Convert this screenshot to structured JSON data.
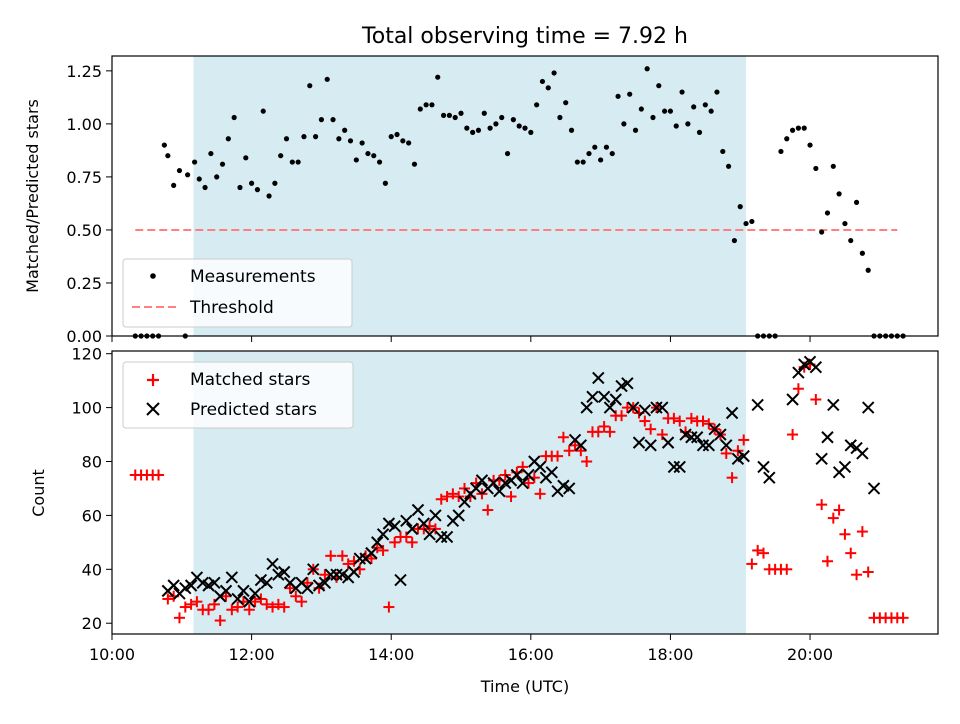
{
  "figure_title": "Total observing time = 7.92 h",
  "colors": {
    "span": "#add8e6",
    "measurements": "#000000",
    "threshold": "#ff8080",
    "matched": "#ff0000",
    "predicted": "#000000"
  },
  "chart_data": [
    {
      "type": "scatter",
      "title": "Total observing time = 7.92 h",
      "xlabel": "",
      "ylabel": "Matched/Predicted stars",
      "xlim": [
        "10:00",
        "21:50"
      ],
      "ylim": [
        0,
        1.32
      ],
      "yticks": [
        "0.00",
        "0.25",
        "0.50",
        "0.75",
        "1.00",
        "1.25"
      ],
      "shaded_span": [
        "11:10",
        "19:05"
      ],
      "threshold": {
        "name": "Threshold",
        "y": 0.5,
        "x_range": [
          "10:20",
          "21:15"
        ]
      },
      "legend": {
        "position": "lower-left",
        "entries": [
          "Measurements",
          "Threshold"
        ]
      },
      "series": [
        {
          "name": "Measurements",
          "x": [
            "10:20",
            "10:25",
            "10:30",
            "10:35",
            "10:40",
            "10:45",
            "10:48",
            "10:53",
            "10:58",
            "11:03",
            "11:05",
            "11:11",
            "11:15",
            "11:20",
            "11:25",
            "11:30",
            "11:35",
            "11:40",
            "11:45",
            "11:50",
            "11:55",
            "12:00",
            "12:05",
            "12:10",
            "12:15",
            "12:20",
            "12:25",
            "12:30",
            "12:35",
            "12:40",
            "12:45",
            "12:50",
            "12:55",
            "13:00",
            "13:05",
            "13:10",
            "13:15",
            "13:20",
            "13:25",
            "13:30",
            "13:35",
            "13:40",
            "13:45",
            "13:50",
            "13:55",
            "14:00",
            "14:05",
            "14:10",
            "14:15",
            "14:20",
            "14:25",
            "14:30",
            "14:35",
            "14:40",
            "14:45",
            "14:50",
            "14:55",
            "15:00",
            "15:05",
            "15:10",
            "15:15",
            "15:20",
            "15:25",
            "15:30",
            "15:35",
            "15:40",
            "15:45",
            "15:50",
            "15:55",
            "16:00",
            "16:05",
            "16:10",
            "16:15",
            "16:20",
            "16:25",
            "16:30",
            "16:35",
            "16:40",
            "16:45",
            "16:50",
            "16:55",
            "17:00",
            "17:05",
            "17:10",
            "17:15",
            "17:20",
            "17:25",
            "17:30",
            "17:35",
            "17:40",
            "17:45",
            "17:50",
            "17:55",
            "18:00",
            "18:05",
            "18:10",
            "18:15",
            "18:20",
            "18:25",
            "18:30",
            "18:35",
            "18:40",
            "18:45",
            "18:50",
            "18:55",
            "19:00",
            "19:05",
            "19:10",
            "19:15",
            "19:20",
            "19:25",
            "19:30",
            "19:35",
            "19:40",
            "19:45",
            "19:50",
            "19:55",
            "20:00",
            "20:05",
            "20:10",
            "20:15",
            "20:20",
            "20:25",
            "20:30",
            "20:35",
            "20:40",
            "20:45",
            "20:50",
            "20:55",
            "21:00",
            "21:05",
            "21:10",
            "21:15",
            "21:20"
          ],
          "y": [
            0,
            0,
            0,
            0,
            0,
            0.9,
            0.85,
            0.71,
            0.78,
            0,
            0.76,
            0.82,
            0.74,
            0.7,
            0.86,
            0.75,
            0.81,
            0.93,
            1.03,
            0.7,
            0.84,
            0.72,
            0.69,
            1.06,
            0.66,
            0.72,
            0.85,
            0.93,
            0.82,
            0.82,
            0.94,
            1.18,
            0.94,
            1.02,
            1.21,
            1.02,
            0.93,
            0.97,
            0.92,
            0.83,
            0.91,
            0.86,
            0.85,
            0.82,
            0.72,
            0.94,
            0.95,
            0.92,
            0.91,
            0.81,
            1.07,
            1.09,
            1.09,
            1.22,
            1.04,
            1.04,
            1.03,
            1.05,
            0.98,
            0.96,
            0.97,
            1.05,
            0.98,
            1.0,
            1.03,
            0.86,
            1.02,
            0.99,
            0.98,
            0.96,
            1.09,
            1.2,
            1.17,
            1.24,
            1.03,
            1.1,
            0.97,
            0.82,
            0.82,
            0.86,
            0.89,
            0.83,
            0.89,
            0.86,
            1.13,
            1.0,
            1.14,
            0.97,
            1.07,
            1.26,
            1.03,
            1.18,
            1.06,
            1.06,
            0.99,
            1.15,
            1.0,
            1.08,
            0.96,
            1.09,
            1.06,
            1.15,
            0.87,
            0.8,
            0.45,
            0.61,
            0.53,
            0.54,
            0,
            0,
            0,
            0,
            0.87,
            0.93,
            0.97,
            0.98,
            0.98,
            0.9,
            0.79,
            0.49,
            0.58,
            0.8,
            0.67,
            0.53,
            0.45,
            0.63,
            0.39,
            0.31,
            0,
            0,
            0,
            0,
            0,
            0
          ]
        }
      ]
    },
    {
      "type": "scatter",
      "xlabel": "Time (UTC)",
      "ylabel": "Count",
      "xlim": [
        "10:00",
        "21:50"
      ],
      "ylim": [
        16,
        121
      ],
      "xticks": [
        "10:00",
        "12:00",
        "14:00",
        "16:00",
        "18:00",
        "20:00"
      ],
      "yticks": [
        "20",
        "40",
        "60",
        "80",
        "100",
        "120"
      ],
      "shaded_span": [
        "11:10",
        "19:05"
      ],
      "legend": {
        "position": "upper-left",
        "entries": [
          "Matched stars",
          "Predicted stars"
        ]
      },
      "series": [
        {
          "name": "Matched stars",
          "x": [
            "10:20",
            "10:25",
            "10:30",
            "10:35",
            "10:40",
            "10:48",
            "10:53",
            "10:58",
            "11:03",
            "11:08",
            "11:13",
            "11:18",
            "11:23",
            "11:28",
            "11:33",
            "11:38",
            "11:43",
            "11:48",
            "11:53",
            "11:58",
            "12:03",
            "12:08",
            "12:13",
            "12:18",
            "12:23",
            "12:28",
            "12:33",
            "12:38",
            "12:43",
            "12:48",
            "12:53",
            "12:58",
            "13:03",
            "13:08",
            "13:13",
            "13:18",
            "13:23",
            "13:28",
            "13:33",
            "13:38",
            "13:43",
            "13:48",
            "13:53",
            "13:58",
            "14:03",
            "14:08",
            "14:13",
            "14:18",
            "14:23",
            "14:28",
            "14:33",
            "14:38",
            "14:43",
            "14:48",
            "14:53",
            "14:58",
            "15:03",
            "15:08",
            "15:13",
            "15:18",
            "15:23",
            "15:28",
            "15:33",
            "15:38",
            "15:43",
            "15:48",
            "15:53",
            "15:58",
            "16:03",
            "16:08",
            "16:13",
            "16:18",
            "16:23",
            "16:28",
            "16:33",
            "16:38",
            "16:43",
            "16:48",
            "16:53",
            "16:58",
            "17:03",
            "17:08",
            "17:13",
            "17:18",
            "17:23",
            "17:28",
            "17:33",
            "17:38",
            "17:43",
            "17:48",
            "17:53",
            "17:58",
            "18:03",
            "18:08",
            "18:13",
            "18:18",
            "18:23",
            "18:28",
            "18:33",
            "18:38",
            "18:43",
            "18:48",
            "18:53",
            "18:58",
            "19:03",
            "19:10",
            "19:15",
            "19:20",
            "19:25",
            "19:30",
            "19:35",
            "19:40",
            "19:45",
            "19:50",
            "19:55",
            "20:00",
            "20:05",
            "20:10",
            "20:15",
            "20:20",
            "20:25",
            "20:30",
            "20:35",
            "20:40",
            "20:45",
            "20:50",
            "20:55",
            "21:00",
            "21:05",
            "21:10",
            "21:15",
            "21:20"
          ],
          "y": [
            75,
            75,
            75,
            75,
            75,
            29,
            30,
            22,
            26,
            27,
            28,
            25,
            25,
            27,
            21,
            30,
            25,
            26,
            28,
            25,
            28,
            29,
            27,
            26,
            27,
            26,
            33,
            30,
            28,
            35,
            40,
            33,
            38,
            45,
            37,
            45,
            42,
            43,
            40,
            45,
            44,
            48,
            47,
            26,
            50,
            52,
            52,
            50,
            55,
            55,
            56,
            55,
            66,
            67,
            68,
            67,
            70,
            67,
            72,
            68,
            62,
            73,
            73,
            75,
            67,
            76,
            78,
            72,
            74,
            68,
            82,
            82,
            82,
            89,
            84,
            86,
            84,
            80,
            91,
            91,
            93,
            91,
            97,
            97,
            100,
            100,
            98,
            95,
            92,
            100,
            90,
            96,
            96,
            95,
            91,
            96,
            95,
            95,
            94,
            92,
            90,
            83,
            74,
            84,
            88,
            42,
            47,
            46,
            40,
            40,
            40,
            40,
            90,
            107,
            115,
            116,
            103,
            64,
            43,
            59,
            62,
            53,
            46,
            38,
            54,
            39,
            22,
            22,
            22,
            22,
            22,
            22
          ]
        },
        {
          "name": "Predicted stars",
          "x": [
            "10:48",
            "10:53",
            "10:58",
            "11:03",
            "11:08",
            "11:13",
            "11:18",
            "11:23",
            "11:28",
            "11:33",
            "11:38",
            "11:43",
            "11:48",
            "11:53",
            "11:58",
            "12:03",
            "12:08",
            "12:13",
            "12:18",
            "12:23",
            "12:28",
            "12:33",
            "12:38",
            "12:43",
            "12:48",
            "12:53",
            "12:58",
            "13:03",
            "13:08",
            "13:13",
            "13:18",
            "13:23",
            "13:28",
            "13:33",
            "13:38",
            "13:43",
            "13:48",
            "13:53",
            "13:58",
            "14:03",
            "14:08",
            "14:13",
            "14:18",
            "14:23",
            "14:28",
            "14:33",
            "14:38",
            "14:43",
            "14:48",
            "14:53",
            "14:58",
            "15:03",
            "15:08",
            "15:13",
            "15:18",
            "15:23",
            "15:28",
            "15:33",
            "15:38",
            "15:43",
            "15:48",
            "15:53",
            "15:58",
            "16:03",
            "16:08",
            "16:13",
            "16:18",
            "16:23",
            "16:28",
            "16:33",
            "16:38",
            "16:43",
            "16:48",
            "16:53",
            "16:58",
            "17:03",
            "17:08",
            "17:13",
            "17:18",
            "17:23",
            "17:28",
            "17:33",
            "17:38",
            "17:43",
            "17:48",
            "17:53",
            "17:58",
            "18:03",
            "18:08",
            "18:13",
            "18:18",
            "18:23",
            "18:28",
            "18:33",
            "18:38",
            "18:43",
            "18:48",
            "18:53",
            "18:58",
            "19:03",
            "19:15",
            "19:20",
            "19:25",
            "19:45",
            "19:50",
            "19:55",
            "20:00",
            "20:05",
            "20:10",
            "20:15",
            "20:20",
            "20:25",
            "20:30",
            "20:35",
            "20:40",
            "20:45",
            "20:50",
            "20:55"
          ],
          "y": [
            32,
            34,
            31,
            33,
            34,
            37,
            35,
            34,
            35,
            30,
            32,
            37,
            29,
            32,
            28,
            31,
            36,
            35,
            42,
            38,
            39,
            35,
            33,
            35,
            33,
            40,
            34,
            35,
            38,
            38,
            38,
            37,
            39,
            44,
            44,
            46,
            50,
            53,
            57,
            56,
            36,
            58,
            55,
            62,
            57,
            53,
            60,
            52,
            52,
            58,
            60,
            65,
            68,
            70,
            73,
            70,
            72,
            69,
            72,
            73,
            75,
            72,
            75,
            80,
            78,
            74,
            76,
            69,
            71,
            70,
            88,
            86,
            100,
            104,
            111,
            104,
            100,
            103,
            108,
            109,
            100,
            87,
            99,
            86,
            100,
            100,
            87,
            78,
            78,
            90,
            89,
            89,
            86,
            86,
            92,
            90,
            86,
            98,
            81,
            82,
            101,
            78,
            74,
            103,
            113,
            116,
            117,
            115,
            81,
            89,
            101,
            76,
            78,
            86,
            85,
            83,
            100,
            70
          ]
        }
      ]
    }
  ]
}
